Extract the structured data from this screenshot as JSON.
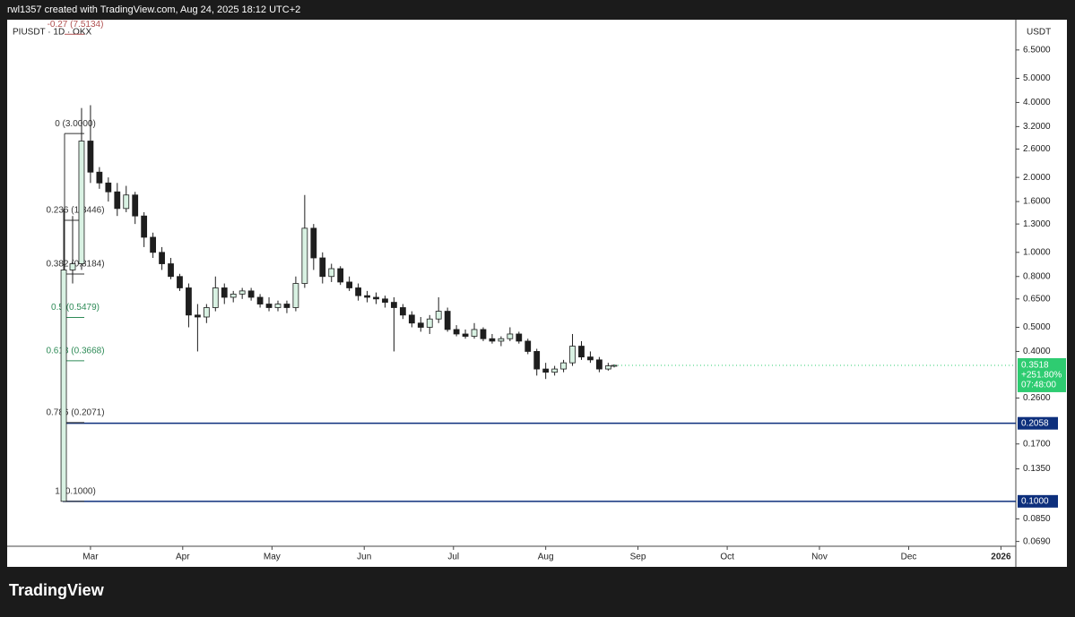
{
  "header": {
    "text": "rwl1357 created with TradingView.com, Aug 24, 2025 18:12 UTC+2"
  },
  "footer": {
    "logo": "TradingView"
  },
  "chart_data": {
    "type": "candlestick",
    "symbol": "PIUSDT · 1D · OKX",
    "currency": "USDT",
    "log_scale": true,
    "grid": false,
    "up_color": "#d9f2e3",
    "down_color": "#1e1e1e",
    "ylim": [
      0.066,
      8.6
    ],
    "yticks": [
      {
        "value": 6.5,
        "label": "6.5000"
      },
      {
        "value": 5,
        "label": "5.0000"
      },
      {
        "value": 4,
        "label": "4.0000"
      },
      {
        "value": 3.2,
        "label": "3.2000"
      },
      {
        "value": 2.6,
        "label": "2.6000"
      },
      {
        "value": 2,
        "label": "2.0000"
      },
      {
        "value": 1.6,
        "label": "1.6000"
      },
      {
        "value": 1.3,
        "label": "1.3000"
      },
      {
        "value": 1,
        "label": "1.0000"
      },
      {
        "value": 0.8,
        "label": "0.8000"
      },
      {
        "value": 0.65,
        "label": "0.6500"
      },
      {
        "value": 0.5,
        "label": "0.5000"
      },
      {
        "value": 0.4,
        "label": "0.4000"
      },
      {
        "value": 0.26,
        "label": "0.2600"
      },
      {
        "value": 0.17,
        "label": "0.1700"
      },
      {
        "value": 0.135,
        "label": "0.1350"
      },
      {
        "value": 0.085,
        "label": "0.0850"
      },
      {
        "value": 0.069,
        "label": "0.0690"
      }
    ],
    "xlim": [
      32,
      371
    ],
    "xticks": [
      {
        "value": 60,
        "label": "Mar"
      },
      {
        "value": 91,
        "label": "Apr"
      },
      {
        "value": 121,
        "label": "May"
      },
      {
        "value": 152,
        "label": "Jun"
      },
      {
        "value": 182,
        "label": "Jul"
      },
      {
        "value": 213,
        "label": "Aug"
      },
      {
        "value": 244,
        "label": "Sep"
      },
      {
        "value": 274,
        "label": "Oct"
      },
      {
        "value": 305,
        "label": "Nov"
      },
      {
        "value": 335,
        "label": "Dec"
      },
      {
        "value": 366,
        "label": "2026"
      }
    ],
    "x": [
      51,
      54,
      57,
      60,
      63,
      66,
      69,
      72,
      75,
      78,
      81,
      84,
      87,
      90,
      93,
      96,
      99,
      102,
      105,
      108,
      111,
      114,
      117,
      120,
      123,
      126,
      129,
      132,
      135,
      138,
      141,
      144,
      147,
      150,
      153,
      156,
      159,
      162,
      165,
      168,
      171,
      174,
      177,
      180,
      183,
      186,
      189,
      192,
      195,
      198,
      201,
      204,
      207,
      210,
      213,
      216,
      219,
      222,
      225,
      228,
      231,
      234,
      236
    ],
    "open": [
      0.1,
      0.85,
      0.9,
      2.8,
      2.1,
      1.9,
      1.75,
      1.5,
      1.7,
      1.4,
      1.15,
      1.0,
      0.9,
      0.8,
      0.72,
      0.56,
      0.55,
      0.6,
      0.72,
      0.66,
      0.68,
      0.7,
      0.66,
      0.62,
      0.6,
      0.62,
      0.6,
      0.75,
      1.25,
      0.95,
      0.8,
      0.86,
      0.76,
      0.72,
      0.67,
      0.66,
      0.65,
      0.63,
      0.6,
      0.56,
      0.52,
      0.5,
      0.54,
      0.58,
      0.49,
      0.47,
      0.46,
      0.49,
      0.45,
      0.44,
      0.45,
      0.47,
      0.44,
      0.4,
      0.34,
      0.33,
      0.34,
      0.36,
      0.42,
      0.38,
      0.37,
      0.34,
      0.35
    ],
    "high": [
      1.5,
      1.4,
      3.8,
      3.9,
      2.2,
      2.0,
      1.9,
      1.85,
      1.75,
      1.45,
      1.2,
      1.05,
      0.95,
      0.82,
      0.75,
      0.62,
      0.62,
      0.8,
      0.75,
      0.7,
      0.72,
      0.72,
      0.68,
      0.66,
      0.64,
      0.64,
      0.8,
      1.7,
      1.3,
      1.0,
      0.9,
      0.88,
      0.8,
      0.75,
      0.7,
      0.69,
      0.67,
      0.66,
      0.62,
      0.58,
      0.55,
      0.56,
      0.66,
      0.6,
      0.51,
      0.49,
      0.52,
      0.5,
      0.47,
      0.46,
      0.5,
      0.48,
      0.45,
      0.41,
      0.36,
      0.35,
      0.37,
      0.47,
      0.44,
      0.4,
      0.38,
      0.36,
      0.355
    ],
    "low": [
      0.1,
      0.75,
      0.85,
      1.9,
      1.8,
      1.6,
      1.4,
      1.45,
      1.3,
      1.05,
      0.95,
      0.85,
      0.78,
      0.7,
      0.5,
      0.4,
      0.52,
      0.58,
      0.62,
      0.63,
      0.65,
      0.64,
      0.6,
      0.58,
      0.58,
      0.57,
      0.58,
      0.72,
      0.85,
      0.75,
      0.76,
      0.74,
      0.7,
      0.64,
      0.63,
      0.62,
      0.6,
      0.4,
      0.54,
      0.5,
      0.48,
      0.47,
      0.52,
      0.48,
      0.46,
      0.45,
      0.45,
      0.44,
      0.43,
      0.42,
      0.44,
      0.43,
      0.39,
      0.32,
      0.31,
      0.32,
      0.33,
      0.35,
      0.37,
      0.36,
      0.33,
      0.335,
      0.345
    ],
    "close": [
      0.85,
      0.9,
      2.8,
      2.1,
      1.9,
      1.75,
      1.5,
      1.7,
      1.4,
      1.15,
      1.0,
      0.9,
      0.8,
      0.72,
      0.56,
      0.55,
      0.6,
      0.72,
      0.66,
      0.68,
      0.7,
      0.66,
      0.62,
      0.6,
      0.62,
      0.6,
      0.75,
      1.25,
      0.95,
      0.8,
      0.86,
      0.76,
      0.72,
      0.67,
      0.66,
      0.65,
      0.63,
      0.6,
      0.56,
      0.52,
      0.5,
      0.54,
      0.58,
      0.49,
      0.47,
      0.46,
      0.49,
      0.45,
      0.44,
      0.45,
      0.47,
      0.44,
      0.4,
      0.34,
      0.33,
      0.34,
      0.36,
      0.42,
      0.38,
      0.37,
      0.34,
      0.35,
      0.3518
    ],
    "fib_levels": [
      {
        "label": "-0.27 (7.5134)",
        "value": 7.5134,
        "color": "#b05050"
      },
      {
        "label": "0 (3.0000)",
        "value": 3.0,
        "color": "#333333"
      },
      {
        "label": "0.236 (1.3446)",
        "value": 1.3446,
        "color": "#333333"
      },
      {
        "label": "0.382 (0.8184)",
        "value": 0.8184,
        "color": "#333333"
      },
      {
        "label": "0.5 (0.5479)",
        "value": 0.5479,
        "color": "#2e8b57"
      },
      {
        "label": "0.618 (0.3668)",
        "value": 0.3668,
        "color": "#2e8b57"
      },
      {
        "label": "0.786 (0.2071)",
        "value": 0.2071,
        "color": "#333333"
      },
      {
        "label": "1 (0.1000)",
        "value": 0.1,
        "color": "#333333"
      }
    ],
    "levels": [
      {
        "value": 0.2058,
        "label": "0.2058",
        "color": "#0d2f7c"
      },
      {
        "value": 0.1,
        "label": "0.1000",
        "color": "#0d2f7c"
      }
    ],
    "last": {
      "price": 0.3518,
      "change": "+251.80%",
      "countdown": "07:48:00",
      "color": "#2ecc71"
    }
  }
}
